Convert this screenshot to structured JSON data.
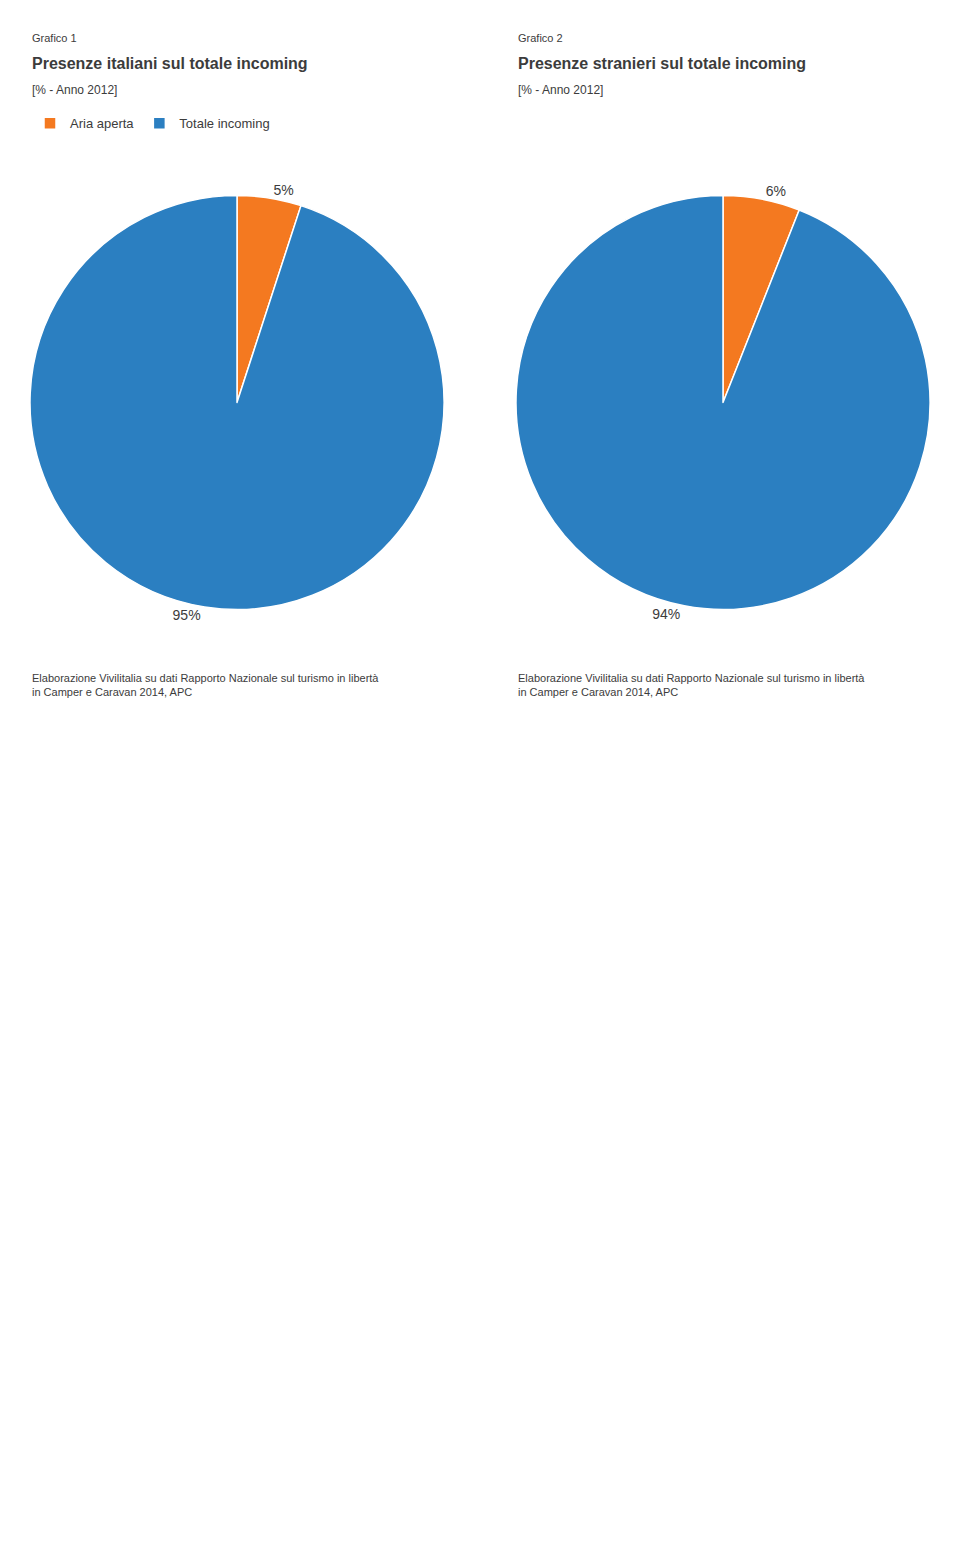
{
  "chart_data": [
    {
      "type": "pie",
      "title": "Presenze italiani sul totale incoming",
      "subtitle": "[% - Anno 2012]",
      "annotations": [
        "Grafico 1",
        "Elaborazione Vivilitalia su dati Rapporto Nazionale sul turismo in libertà\nin Camper e Caravan 2014, APC"
      ],
      "categories": [
        "Aria aperta",
        "Totale incoming"
      ],
      "values": [
        5,
        95
      ],
      "value_labels": [
        "5%",
        "95%"
      ],
      "colors": [
        "#f47920",
        "#2b7fc1"
      ],
      "data_labels": true,
      "legend": "top"
    },
    {
      "type": "pie",
      "title": "Presenze stranieri sul totale incoming",
      "subtitle": "[% - Anno 2012]",
      "annotations": [
        "Grafico 2",
        "Elaborazione Vivilitalia su dati Rapporto Nazionale sul turismo in libertà\nin Camper e Caravan 2014, APC"
      ],
      "categories": [
        "Aria aperta",
        "Totale incoming"
      ],
      "values": [
        6,
        94
      ],
      "value_labels": [
        "6%",
        "94%"
      ],
      "colors": [
        "#f47920",
        "#2b7fc1"
      ],
      "data_labels": true,
      "legend": "top"
    }
  ]
}
